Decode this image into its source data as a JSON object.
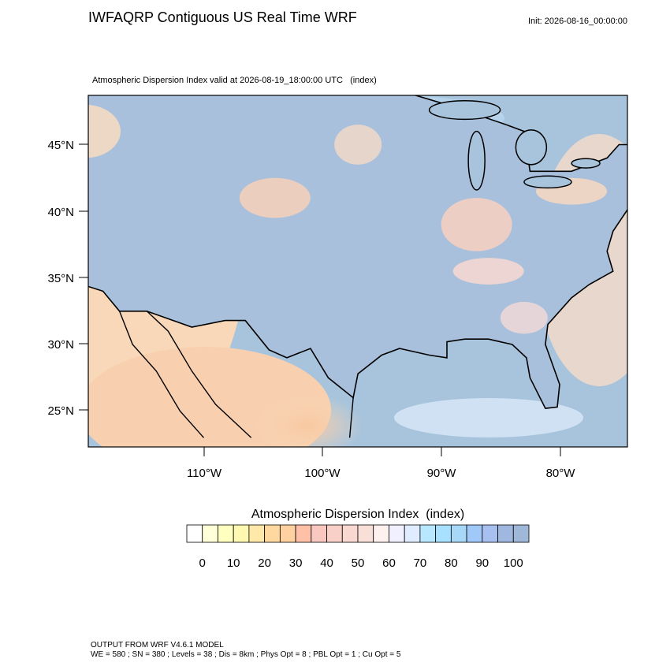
{
  "header": {
    "title": "IWFAQRP Contiguous US Real Time WRF",
    "init": "Init: 2026-08-16_00:00:00",
    "subtitle": "Atmospheric Dispersion Index valid at 2026-08-19_18:00:00 UTC   (index)"
  },
  "map": {
    "lat_labels": [
      "45°N",
      "40°N",
      "35°N",
      "30°N",
      "25°N"
    ],
    "lon_labels": [
      "110°W",
      "100°W",
      "90°W",
      "80°W"
    ]
  },
  "colorbar": {
    "title": "Atmospheric Dispersion Index  (index)",
    "colors": [
      "#ffffff",
      "#ffffd8",
      "#ffffc0",
      "#fff8b0",
      "#ffe8a8",
      "#ffd8a0",
      "#ffd0a0",
      "#ffc0a8",
      "#f8c8c0",
      "#f8d0c8",
      "#f8d8d0",
      "#f8e0d8",
      "#fff0f0",
      "#f0f0ff",
      "#e0ecff",
      "#b8e8ff",
      "#a8e0ff",
      "#a8d8f8",
      "#a0c8f8",
      "#a8c0f0",
      "#a0b8e0",
      "#a0b8d8"
    ],
    "labels": [
      0,
      10,
      20,
      30,
      40,
      50,
      60,
      70,
      80,
      90,
      100
    ]
  },
  "footer": {
    "lines": [
      "OUTPUT FROM WRF V4.6.1 MODEL",
      "WE = 580 ; SN = 380 ; Levels = 38 ; Dis = 8km ; Phys Opt = 8 ; PBL Opt = 1 ; Cu Opt = 5"
    ]
  }
}
